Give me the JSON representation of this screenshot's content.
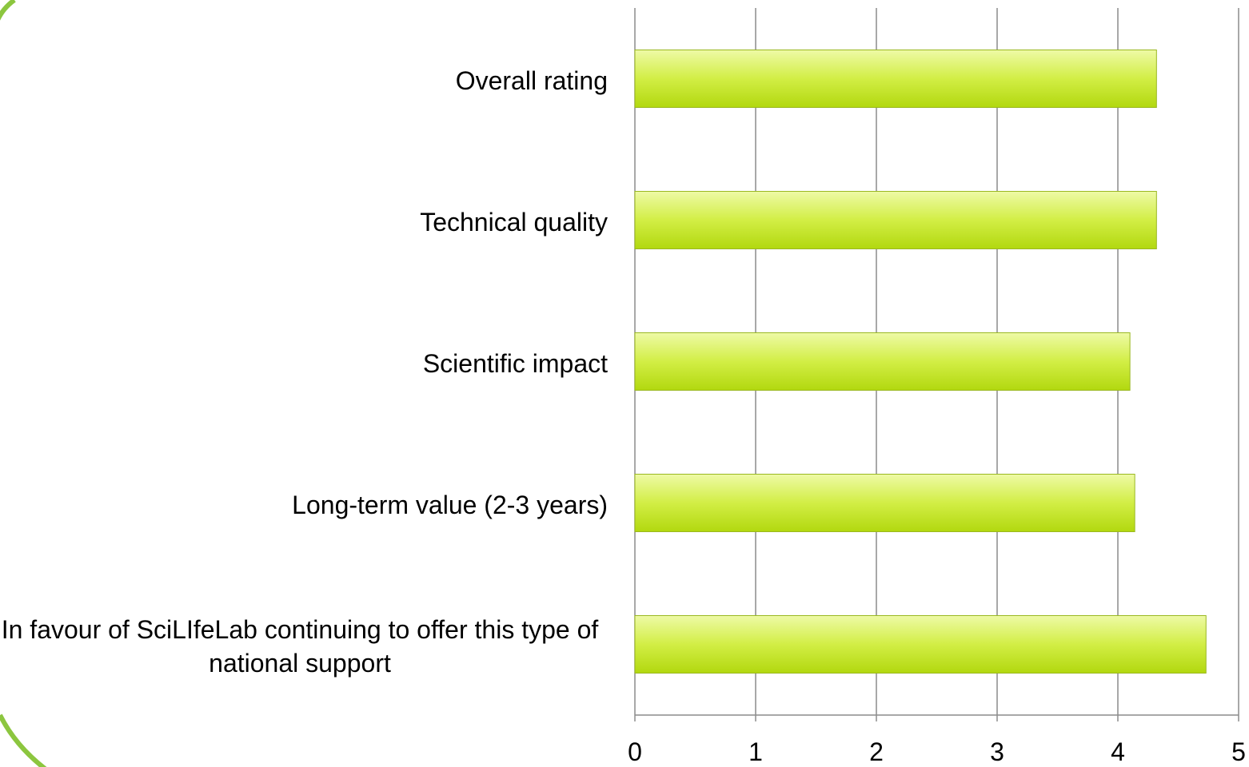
{
  "chart_data": {
    "type": "barh",
    "categories": [
      "Overall rating",
      "Technical quality",
      "Scientific impact",
      "Long-term value (2-3 years)",
      "In favour of SciLIfeLab continuing to offer this type of national support"
    ],
    "values": [
      4.32,
      4.32,
      4.1,
      4.14,
      4.73
    ],
    "xlim": [
      0,
      5
    ],
    "xticks": [
      0,
      1,
      2,
      3,
      4,
      5
    ],
    "grid": true,
    "color": "#c3e526"
  }
}
